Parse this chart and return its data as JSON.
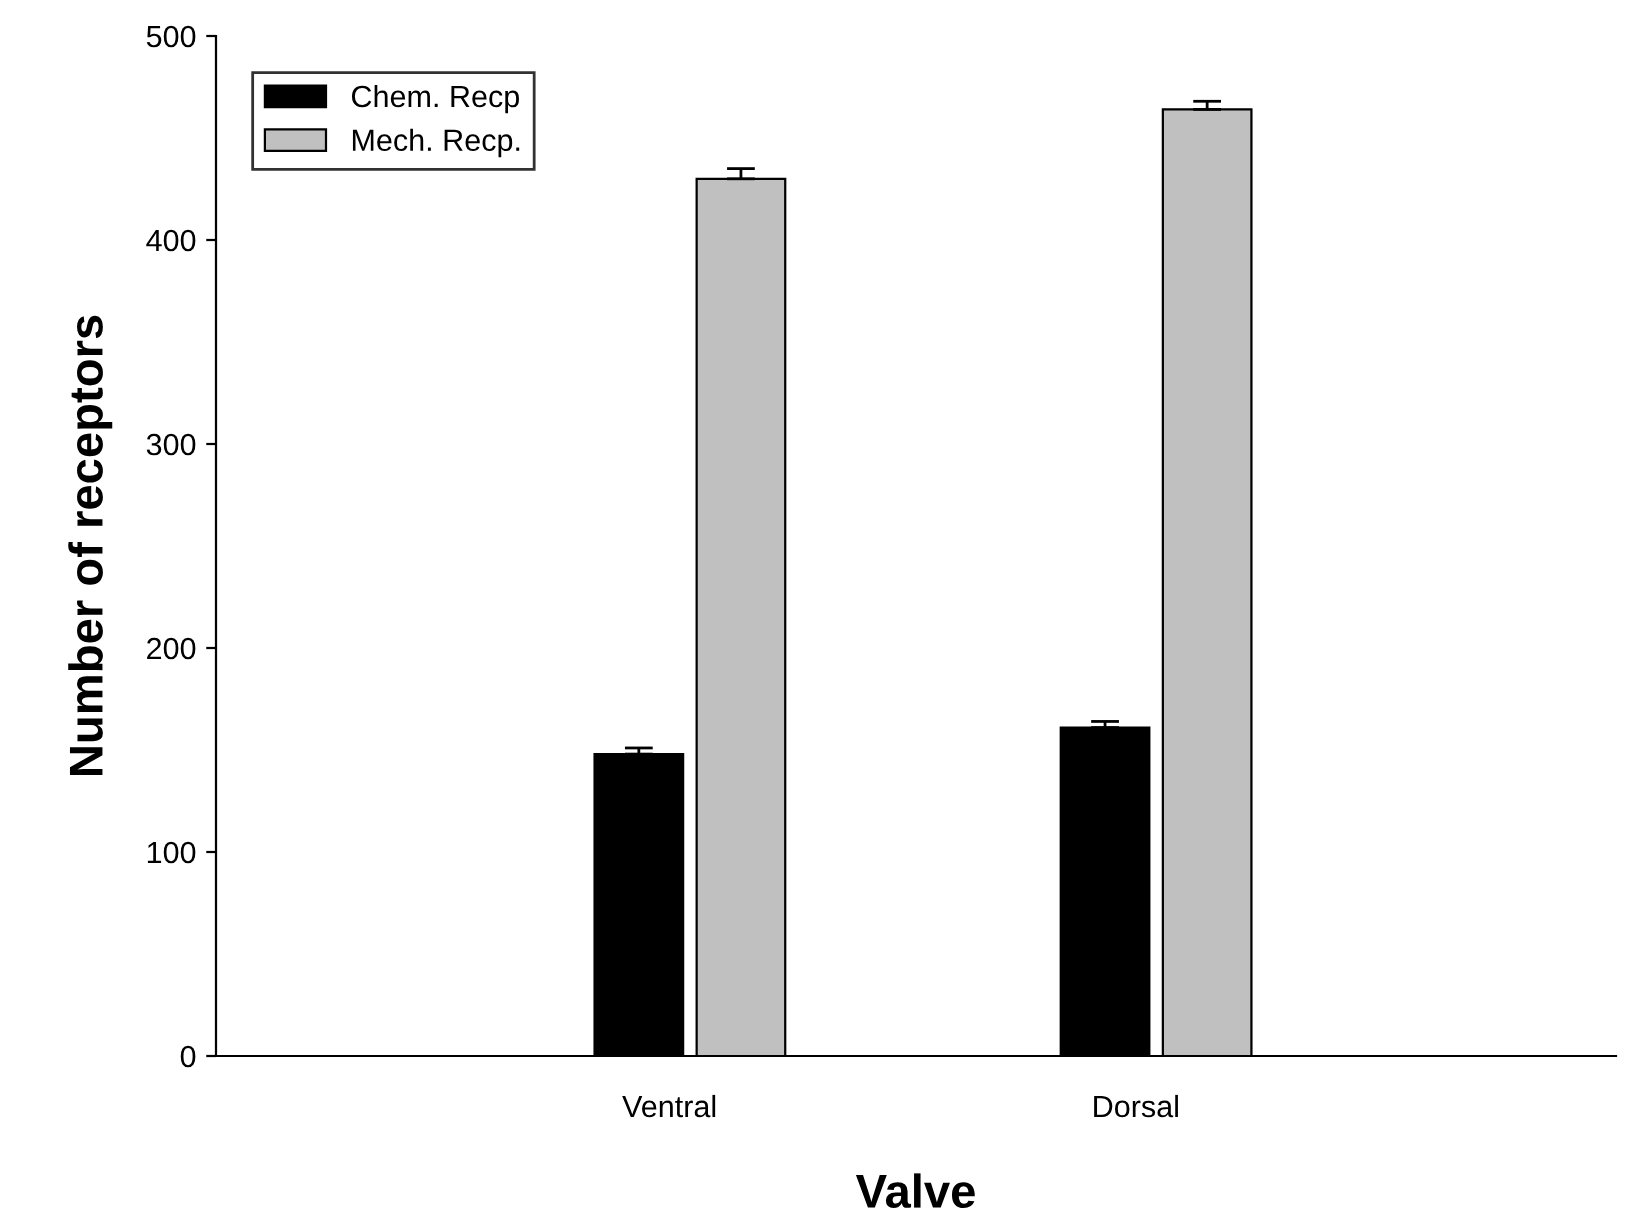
{
  "chart_data": {
    "type": "bar",
    "xlabel": "Valve",
    "ylabel": "Number of receptors",
    "categories": [
      "Ventral",
      "Dorsal"
    ],
    "series": [
      {
        "name": "Chem. Recp",
        "color": "#000000",
        "values": [
          148,
          161
        ],
        "errors": [
          3,
          3
        ]
      },
      {
        "name": "Mech. Recp.",
        "color": "#c0c0c0",
        "values": [
          430,
          464
        ],
        "errors": [
          5,
          4
        ]
      }
    ],
    "ylim": [
      0,
      500
    ],
    "yticks": [
      0,
      100,
      200,
      300,
      400,
      500
    ],
    "grid": false,
    "legend": "top left"
  }
}
